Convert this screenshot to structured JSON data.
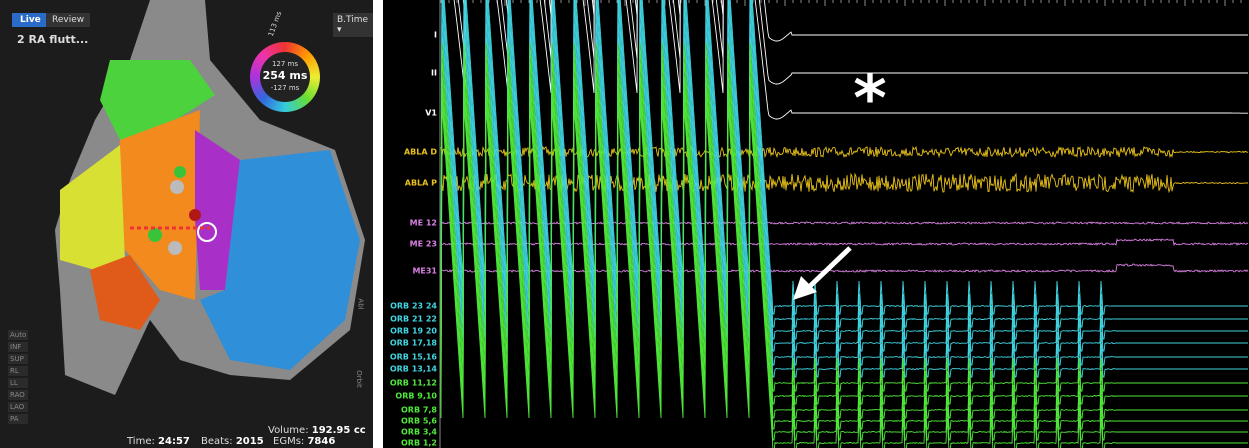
{
  "left_panel": {
    "tabs": [
      "Live",
      "Review"
    ],
    "dropdown": "B.Time ▾",
    "map_name": "2 RA flutt...",
    "ring": {
      "tilted": "113 ms",
      "upper": "127 ms",
      "center": "254 ms",
      "lower": "-127 ms"
    },
    "view_buttons": [
      "Auto",
      "INF",
      "SUP",
      "RL",
      "LL",
      "RAO",
      "LAO",
      "PA"
    ],
    "side_tabs": [
      "Abl",
      "Orbit"
    ],
    "status": [
      {
        "label": "Time:",
        "value": "24:57"
      },
      {
        "label": "Beats:",
        "value": "2015"
      },
      {
        "label": "Volume:",
        "value": "192.95 cc"
      },
      {
        "label": "EGMs:",
        "value": "7846"
      }
    ]
  },
  "right_panel": {
    "annotation": "*",
    "channels": [
      {
        "label": "I",
        "color": "#ffffff"
      },
      {
        "label": "II",
        "color": "#ffffff"
      },
      {
        "label": "V1",
        "color": "#ffffff"
      },
      {
        "label": "ABLA D",
        "color": "#e8c11a"
      },
      {
        "label": "ABLA P",
        "color": "#e8c11a"
      },
      {
        "label": "ME 12",
        "color": "#d77fe0"
      },
      {
        "label": "ME 23",
        "color": "#d77fe0"
      },
      {
        "label": "ME31",
        "color": "#d77fe0"
      },
      {
        "label": "ORB 23 24",
        "color": "#3fd4e0"
      },
      {
        "label": "ORB 21 22",
        "color": "#3fd4e0"
      },
      {
        "label": "ORB 19 20",
        "color": "#3fd4e0"
      },
      {
        "label": "ORB 17,18",
        "color": "#3fd4e0"
      },
      {
        "label": "ORB 15,16",
        "color": "#3fd4e0"
      },
      {
        "label": "ORB 13,14",
        "color": "#3fd4e0"
      },
      {
        "label": "ORB 11,12",
        "color": "#4fe83a"
      },
      {
        "label": "ORB 9,10",
        "color": "#4fe83a"
      },
      {
        "label": "ORB 7,8",
        "color": "#4fe83a"
      },
      {
        "label": "ORB 5,6",
        "color": "#4fe83a"
      },
      {
        "label": "ORB 3,4",
        "color": "#4fe83a"
      },
      {
        "label": "ORB 1,2",
        "color": "#4fe83a"
      }
    ]
  }
}
